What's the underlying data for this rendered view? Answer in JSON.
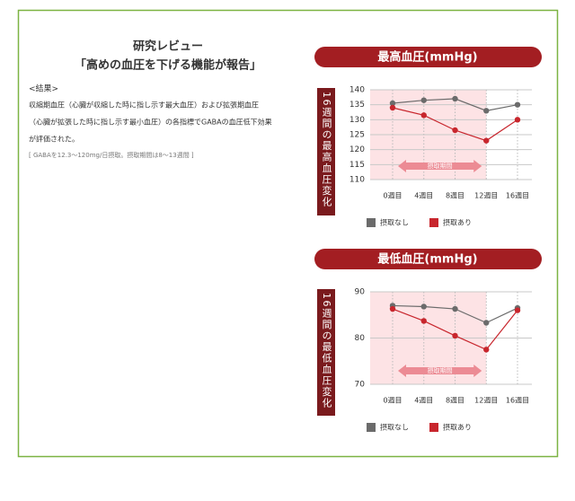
{
  "text": {
    "heading": [
      "研究レビュー",
      "「高めの血圧を下げる機能が報告」"
    ],
    "subheading": "<結果>",
    "paragraph": [
      "収縮期血圧（心臓が収縮した時に指し示す最大血圧）および拡張期血圧",
      "（心臓が拡張した時に指し示す最小血圧）の各指標でGABAの血圧低下効果",
      "が評価された。"
    ],
    "note": "[ GABAを12.3〜120mg/日摂取。摂取期間は8〜13週間 ]"
  },
  "chart_data": [
    {
      "type": "line",
      "title": "最高血圧(mmHg)",
      "ylabel": "16週間の最高血圧変化",
      "annotation": "摂取期間",
      "categories": [
        "0週目",
        "4週目",
        "8週目",
        "12週目",
        "16週目"
      ],
      "series": [
        {
          "name": "摂取なし",
          "color": "#6b6b6b",
          "values": [
            135.5,
            136.5,
            137,
            133,
            135
          ]
        },
        {
          "name": "摂取あり",
          "color": "#c8262d",
          "values": [
            134,
            131.5,
            126.5,
            123,
            130
          ]
        }
      ],
      "ylim": [
        110,
        140
      ],
      "yticks": [
        110,
        115,
        120,
        125,
        130,
        135,
        140
      ],
      "grid": true
    },
    {
      "type": "line",
      "title": "最低血圧(mmHg)",
      "ylabel": "16週間の最低血圧変化",
      "annotation": "摂取期間",
      "categories": [
        "0週目",
        "4週目",
        "8週目",
        "12週目",
        "16週目"
      ],
      "series": [
        {
          "name": "摂取なし",
          "color": "#6b6b6b",
          "values": [
            87,
            86.8,
            86.3,
            83.3,
            86.5
          ]
        },
        {
          "name": "摂取あり",
          "color": "#c8262d",
          "values": [
            86.3,
            83.7,
            80.5,
            77.5,
            86
          ]
        }
      ],
      "ylim": [
        70,
        90
      ],
      "yticks": [
        70,
        80,
        90
      ],
      "grid": true
    }
  ]
}
